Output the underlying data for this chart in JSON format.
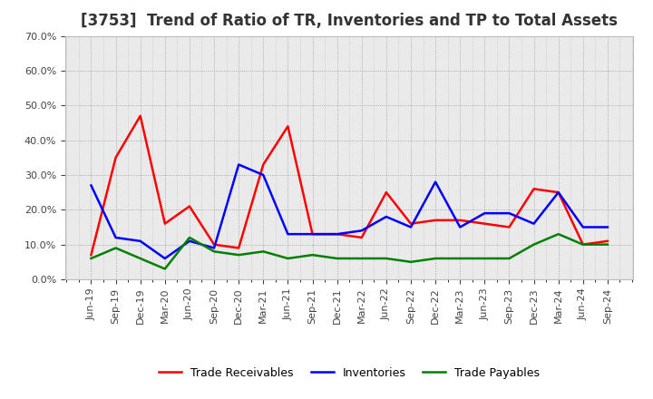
{
  "title": "[3753]  Trend of Ratio of TR, Inventories and TP to Total Assets",
  "x_labels": [
    "Jun-19",
    "Sep-19",
    "Dec-19",
    "Mar-20",
    "Jun-20",
    "Sep-20",
    "Dec-20",
    "Mar-21",
    "Jun-21",
    "Sep-21",
    "Dec-21",
    "Mar-22",
    "Jun-22",
    "Sep-22",
    "Dec-22",
    "Mar-23",
    "Jun-23",
    "Sep-23",
    "Dec-23",
    "Mar-24",
    "Jun-24",
    "Sep-24"
  ],
  "trade_receivables": [
    0.07,
    0.35,
    0.47,
    0.16,
    0.21,
    0.1,
    0.09,
    0.33,
    0.44,
    0.13,
    0.13,
    0.12,
    0.25,
    0.16,
    0.17,
    0.17,
    0.16,
    0.15,
    0.26,
    0.25,
    0.1,
    0.11
  ],
  "inventories": [
    0.27,
    0.12,
    0.11,
    0.06,
    0.11,
    0.09,
    0.33,
    0.3,
    0.13,
    0.13,
    0.13,
    0.14,
    0.18,
    0.15,
    0.28,
    0.15,
    0.19,
    0.19,
    0.16,
    0.25,
    0.15,
    0.15
  ],
  "trade_payables": [
    0.06,
    0.09,
    0.06,
    0.03,
    0.12,
    0.08,
    0.07,
    0.08,
    0.06,
    0.07,
    0.06,
    0.06,
    0.06,
    0.05,
    0.06,
    0.06,
    0.06,
    0.06,
    0.1,
    0.13,
    0.1,
    0.1
  ],
  "ylim": [
    0.0,
    0.7
  ],
  "yticks": [
    0.0,
    0.1,
    0.2,
    0.3,
    0.4,
    0.5,
    0.6,
    0.7
  ],
  "tr_color": "#FF0000",
  "inv_color": "#0000FF",
  "tp_color": "#008000",
  "bg_color": "#FFFFFF",
  "plot_bg_color": "#EAEAEA",
  "grid_color": "#999999",
  "text_color": "#444444",
  "legend_labels": [
    "Trade Receivables",
    "Inventories",
    "Trade Payables"
  ],
  "title_fontsize": 12,
  "tick_fontsize": 8,
  "legend_fontsize": 9,
  "line_width": 1.8
}
